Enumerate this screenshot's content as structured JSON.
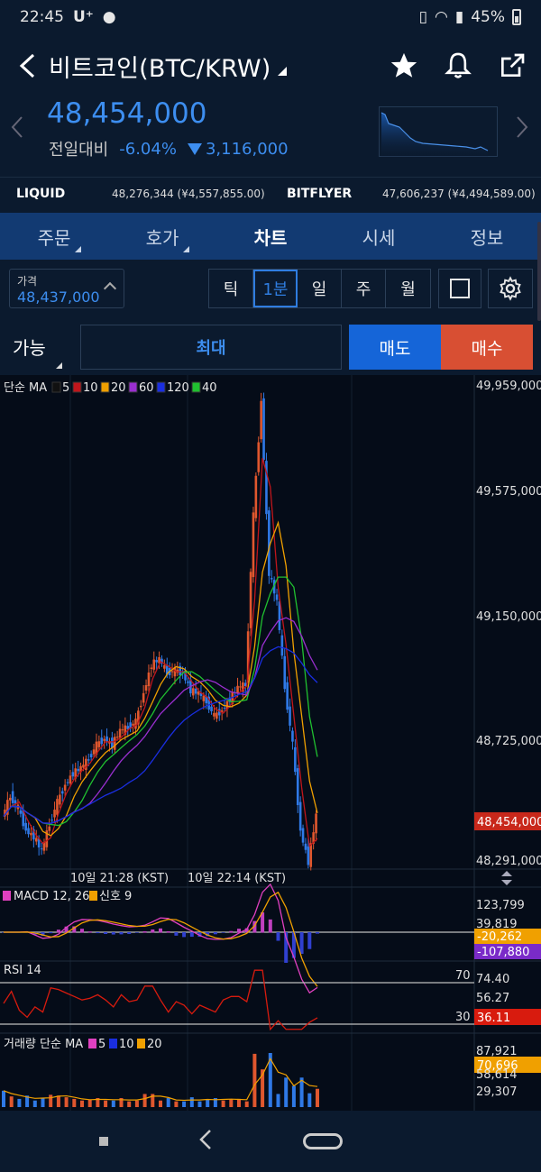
{
  "status": {
    "time": "22:45",
    "carrier": "U⁺",
    "battery": "45%"
  },
  "header": {
    "title": "비트코인(BTC/KRW)"
  },
  "price": {
    "current": "48,454,000",
    "delta_label": "전일대비",
    "delta_pct": "-6.04%",
    "delta_amount": "3,116,000"
  },
  "exchanges": [
    {
      "name": "LIQUID",
      "value": "48,276,344 (¥4,557,855.00)"
    },
    {
      "name": "BITFLYER",
      "value": "47,606,237 (¥4,494,589.00)"
    }
  ],
  "tabs": [
    "주문",
    "호가",
    "차트",
    "시세",
    "정보"
  ],
  "active_tab": "차트",
  "price_chip": {
    "label": "가격",
    "value": "48,437,000"
  },
  "periods": [
    "틱",
    "1분",
    "일",
    "주",
    "월"
  ],
  "active_period": "1분",
  "order": {
    "avail": "가능",
    "max": "최대",
    "sell": "매도",
    "buy": "매수"
  },
  "chart_labels": {
    "ma_title": "단순 MA",
    "ma_periods": [
      "5",
      "10",
      "20",
      "60",
      "120",
      "40"
    ],
    "time_labels": [
      "10일 21:28 (KST)",
      "10일 22:14 (KST)"
    ],
    "macd_title": "MACD 12, 26",
    "macd_signal": "신호 9",
    "rsi_title": "RSI 14",
    "rsi_upper": "70",
    "rsi_lower": "30",
    "vol_title": "거래량 단순 MA",
    "vol_periods": [
      "5",
      "10",
      "20"
    ]
  },
  "axis": {
    "price_ticks": [
      "49,959,000",
      "49,575,000",
      "49,150,000",
      "48,725,000",
      "48,291,000"
    ],
    "last_price": "48,454,000",
    "macd_ticks": [
      "123,799",
      "39,819"
    ],
    "macd_tags": [
      "-20,262",
      "-107,880"
    ],
    "rsi_ticks": [
      "74.40",
      "56.27"
    ],
    "rsi_tag": "36.11",
    "vol_ticks": [
      "87,921",
      "58,614",
      "29,307"
    ],
    "vol_tag": "70,696"
  },
  "colors": {
    "ma5": "#1a1a1a",
    "ma10": "#c0161c",
    "ma20": "#f0a000",
    "ma60": "#9a2fd0",
    "ma120": "#1a2ee0",
    "ma40": "#20c030",
    "up": "#e0572e",
    "down": "#2f79e6",
    "accent": "#3d8ef0"
  },
  "chart_data": {
    "type": "candlestick",
    "x_labels": [
      "10일 21:28 (KST)",
      "10일 22:14 (KST)"
    ],
    "y_range": [
      48291000,
      49959000
    ],
    "close_series": [
      48450000,
      48520000,
      48480000,
      48400000,
      48380000,
      48330000,
      48420000,
      48500000,
      48560000,
      48600000,
      48620000,
      48650000,
      48700000,
      48720000,
      48700000,
      48750000,
      48760000,
      48780000,
      48880000,
      48980000,
      49000000,
      48950000,
      48960000,
      48950000,
      48890000,
      48880000,
      48850000,
      48800000,
      48820000,
      48860000,
      48900000,
      48910000,
      49500000,
      49900000,
      49300000,
      49200000,
      48900000,
      48700000,
      48400000,
      48291000,
      48454000
    ],
    "last_price": 48454000,
    "rsi": {
      "upper": 70,
      "lower": 30,
      "last": 36.11
    },
    "macd": {
      "macd": -20262,
      "signal": -107880
    },
    "volume_ma_last": 70696
  }
}
